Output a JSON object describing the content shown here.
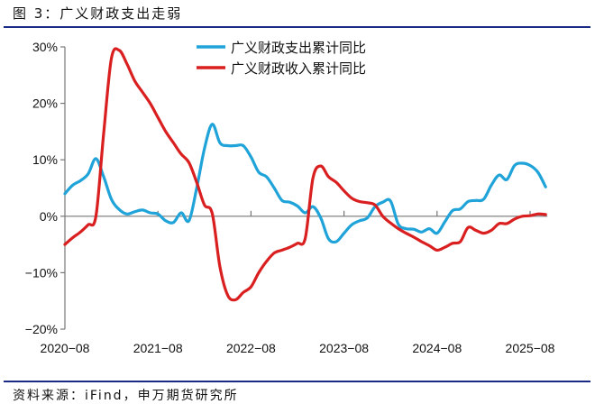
{
  "title": "图 3：广义财政支出走弱",
  "source": "资料来源：iFind，申万期货研究所",
  "chart_data": {
    "type": "line",
    "title": "",
    "xlabel": "",
    "ylabel": "",
    "x_start": "2020-08",
    "x_end": "2025-10",
    "frequency": "monthly",
    "x_ticks": [
      "2020-08",
      "2021-08",
      "2022-08",
      "2023-08",
      "2024-08",
      "2025-08"
    ],
    "y_ticks": [
      "30%",
      "20%",
      "10%",
      "0%",
      "-10%",
      "-20%"
    ],
    "ylim": [
      -20,
      30
    ],
    "y_unit": "%",
    "grid": false,
    "legend_position": "top-right",
    "series": [
      {
        "name": "广义财政支出累计同比",
        "color": "#1fa3d8",
        "values": [
          4,
          5.5,
          6.3,
          7.5,
          10.2,
          7,
          3,
          1.2,
          0.4,
          0.8,
          1.1,
          0.6,
          0.4,
          -0.8,
          -1.1,
          0.6,
          -0.8,
          5,
          12,
          16.3,
          13,
          12.5,
          12.5,
          12.5,
          10.5,
          7.8,
          7,
          5,
          2.8,
          2.5,
          1.8,
          0.6,
          1.7,
          -0.3,
          -4,
          -4.5,
          -3,
          -1.5,
          -0.8,
          -0.3,
          1.7,
          2.5,
          2.7,
          -1.4,
          -2.2,
          -2.3,
          -2.8,
          -2.2,
          -3,
          -1,
          1,
          1.3,
          2.6,
          2.8,
          3,
          5.5,
          7.3,
          6.5,
          9,
          9.4,
          9,
          7.8,
          5.2
        ]
      },
      {
        "name": "广义财政收入累计同比",
        "color": "#d91f1f",
        "values": [
          -5,
          -3.8,
          -2.8,
          -1.5,
          0,
          14.7,
          28,
          29.4,
          27,
          24,
          22,
          20,
          17.5,
          15,
          13,
          11,
          9.5,
          6,
          2,
          0.5,
          -9,
          -14,
          -14.8,
          -13.5,
          -12.5,
          -10,
          -8,
          -6.5,
          -6,
          -5.5,
          -4.8,
          -3.9,
          6.8,
          8.9,
          7,
          6,
          4.5,
          3.2,
          2.6,
          2.4,
          2,
          0,
          -1.2,
          -2.2,
          -3,
          -3.7,
          -4.5,
          -5.2,
          -6,
          -5.5,
          -4.8,
          -4.5,
          -2,
          -2.5,
          -3,
          -2.5,
          -1.3,
          -1.3,
          -0.5,
          0,
          0.1,
          0.4,
          0.3
        ]
      }
    ]
  }
}
